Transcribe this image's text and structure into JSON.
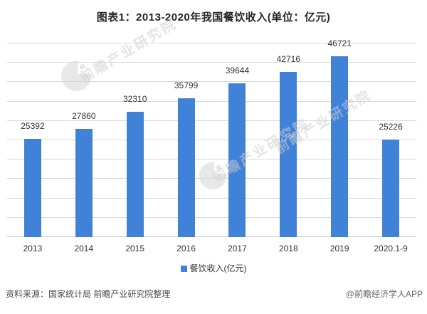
{
  "title": "图表1：2013-2020年我国餐饮收入(单位：亿元)",
  "chart_data": {
    "type": "bar",
    "categories": [
      "2013",
      "2014",
      "2015",
      "2016",
      "2017",
      "2018",
      "2019",
      "2020.1-9"
    ],
    "values": [
      25392,
      27860,
      32310,
      35799,
      39644,
      42716,
      46721,
      25226
    ],
    "series": [
      {
        "name": "餐饮收入(亿元)",
        "values": [
          25392,
          27860,
          32310,
          35799,
          39644,
          42716,
          46721,
          25226
        ]
      }
    ],
    "title": "图表1：2013-2020年我国餐饮收入(单位：亿元)",
    "xlabel": "",
    "ylabel": "",
    "ylim": [
      0,
      50000
    ],
    "gridline_interval": 5000,
    "grid": "horizontal-only",
    "y_axis_labels_shown": false,
    "legend_position": "bottom",
    "bar_color": "#4182D9",
    "data_labels_shown": true
  },
  "legend": {
    "label": "餐饮收入(亿元)",
    "marker_color": "#4182D9"
  },
  "footer": {
    "source": "资料来源：国家统计局 前瞻产业研究院整理",
    "credit": "@前瞻经济学人APP"
  },
  "watermark": {
    "text": "前瞻产业研究院",
    "logo_name": "qianzhan-logo"
  },
  "colors": {
    "bar": "#4182D9",
    "gridline": "#D9D9D9",
    "title_text": "#262626",
    "label_text": "#333333"
  }
}
